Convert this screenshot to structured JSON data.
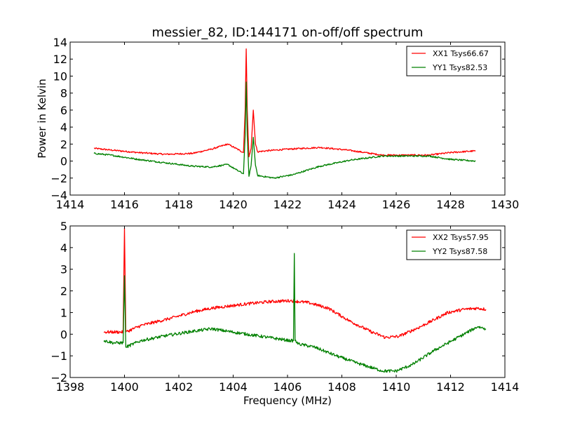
{
  "chart_data": [
    {
      "type": "line",
      "title": "messier_82, ID:144171 on-off/off spectrum",
      "xlabel": "",
      "ylabel": "Power in Kelvin",
      "xlim": [
        1414,
        1430
      ],
      "ylim": [
        -4,
        14
      ],
      "xticks": [
        "1414",
        "1416",
        "1418",
        "1420",
        "1422",
        "1424",
        "1426",
        "1428",
        "1430"
      ],
      "yticks": [
        "−4",
        "−2",
        "0",
        "2",
        "4",
        "6",
        "8",
        "10",
        "12",
        "14"
      ],
      "xtick_values": [
        1414,
        1416,
        1418,
        1420,
        1422,
        1424,
        1426,
        1428,
        1430
      ],
      "ytick_values": [
        -4,
        -2,
        0,
        2,
        4,
        6,
        8,
        10,
        12,
        14
      ],
      "grid": false,
      "legend_position": "top-right",
      "series": [
        {
          "name": "XX1 Tsys66.67",
          "color": "#ff0000",
          "x": [
            1414.88,
            1415.5,
            1416.5,
            1417.5,
            1418.5,
            1419.2,
            1419.8,
            1420.1,
            1420.38,
            1420.44,
            1420.48,
            1420.52,
            1420.58,
            1420.66,
            1420.74,
            1420.82,
            1420.9,
            1421.2,
            1422.0,
            1423.2,
            1424.2,
            1425.5,
            1426.5,
            1427.2,
            1428.0,
            1428.92
          ],
          "y": [
            1.5,
            1.3,
            1.0,
            0.8,
            0.9,
            1.4,
            2.0,
            1.5,
            1.0,
            6.0,
            13.2,
            6.0,
            0.5,
            1.5,
            6.0,
            2.0,
            1.1,
            1.2,
            1.4,
            1.6,
            1.3,
            0.7,
            0.7,
            0.7,
            1.0,
            1.2
          ]
        },
        {
          "name": "YY1 Tsys82.53",
          "color": "#008000",
          "x": [
            1414.88,
            1415.5,
            1416.5,
            1417.5,
            1418.5,
            1419.2,
            1419.8,
            1420.1,
            1420.38,
            1420.44,
            1420.48,
            1420.52,
            1420.58,
            1420.66,
            1420.74,
            1420.82,
            1420.9,
            1421.5,
            1422.2,
            1423.2,
            1424.3,
            1425.5,
            1426.5,
            1427.2,
            1428.0,
            1428.92
          ],
          "y": [
            0.9,
            0.7,
            0.2,
            -0.2,
            -0.6,
            -0.7,
            -0.4,
            -1.0,
            -1.5,
            3.0,
            9.3,
            3.0,
            -1.8,
            -0.5,
            2.8,
            -0.5,
            -1.7,
            -2.0,
            -1.6,
            -0.6,
            0.1,
            0.6,
            0.6,
            0.6,
            0.2,
            0.0
          ]
        }
      ]
    },
    {
      "type": "line",
      "title": "",
      "xlabel": "Frequency (MHz)",
      "ylabel": "",
      "xlim": [
        1398,
        1414
      ],
      "ylim": [
        -2,
        5
      ],
      "xticks": [
        "1398",
        "1400",
        "1402",
        "1404",
        "1406",
        "1408",
        "1410",
        "1412",
        "1414"
      ],
      "yticks": [
        "−2",
        "−1",
        "0",
        "1",
        "2",
        "3",
        "4",
        "5"
      ],
      "xtick_values": [
        1398,
        1400,
        1402,
        1404,
        1406,
        1408,
        1410,
        1412,
        1414
      ],
      "ytick_values": [
        -2,
        -1,
        0,
        1,
        2,
        3,
        4,
        5
      ],
      "grid": false,
      "legend_position": "top-right",
      "series": [
        {
          "name": "XX2 Tsys57.95",
          "color": "#ff0000",
          "x": [
            1399.24,
            1399.6,
            1399.95,
            1400.0,
            1400.05,
            1400.6,
            1401.6,
            1402.6,
            1403.2,
            1404.5,
            1405.3,
            1406.1,
            1406.8,
            1407.5,
            1408.3,
            1409.1,
            1409.6,
            1410.1,
            1410.9,
            1411.9,
            1412.5,
            1413.0,
            1413.3
          ],
          "y": [
            0.1,
            0.1,
            0.1,
            4.9,
            0.1,
            0.4,
            0.7,
            1.05,
            1.2,
            1.4,
            1.5,
            1.55,
            1.45,
            1.2,
            0.6,
            0.1,
            -0.15,
            -0.1,
            0.35,
            1.0,
            1.15,
            1.2,
            1.15
          ]
        },
        {
          "name": "YY2 Tsys87.58",
          "color": "#008000",
          "x": [
            1399.24,
            1399.6,
            1399.95,
            1400.0,
            1400.05,
            1400.6,
            1401.6,
            1402.6,
            1403.2,
            1404.5,
            1405.3,
            1406.1,
            1406.22,
            1406.25,
            1406.28,
            1406.4,
            1407.0,
            1407.8,
            1408.6,
            1409.5,
            1410.0,
            1410.6,
            1411.4,
            1412.2,
            1413.0,
            1413.3
          ],
          "y": [
            -0.3,
            -0.4,
            -0.4,
            2.7,
            -0.6,
            -0.3,
            -0.05,
            0.15,
            0.25,
            0.0,
            -0.15,
            -0.3,
            -0.3,
            3.73,
            -0.3,
            -0.45,
            -0.6,
            -1.0,
            -1.35,
            -1.7,
            -1.7,
            -1.4,
            -0.75,
            -0.2,
            0.35,
            0.25
          ]
        }
      ]
    }
  ]
}
